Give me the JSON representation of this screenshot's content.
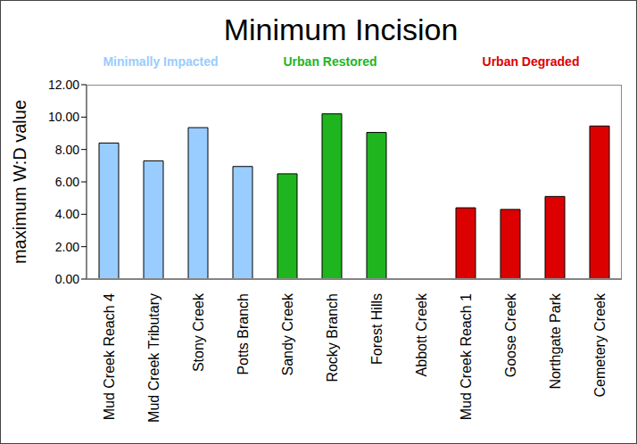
{
  "chart_data": {
    "type": "bar",
    "title": "Minimum Incision",
    "y_label": "maximum W:D value",
    "annotations": [
      {
        "text": "Minimally Impacted",
        "color": "#99ccff"
      },
      {
        "text": "Urban Restored",
        "color": "#1fb51f"
      },
      {
        "text": "Urban Degraded",
        "color": "#dd0000"
      }
    ],
    "categories": [
      "Mud Creek Reach 4",
      "Mud Creek Tributary",
      "Stony Creek",
      "Potts Branch",
      "Sandy Creek",
      "Rocky Branch",
      "Forest Hills",
      "Abbott Creek",
      "Mud Creek Reach 1",
      "Goose Creek",
      "Northgate Park",
      "Cemetery Creek"
    ],
    "values": [
      8.4,
      7.3,
      9.35,
      6.95,
      6.5,
      10.2,
      9.05,
      null,
      4.4,
      4.3,
      5.1,
      9.45
    ],
    "colors": [
      "#99ccff",
      "#99ccff",
      "#99ccff",
      "#99ccff",
      "#1fb51f",
      "#1fb51f",
      "#1fb51f",
      "#1fb51f",
      "#dd0000",
      "#dd0000",
      "#dd0000",
      "#dd0000"
    ],
    "ylim": [
      0,
      12
    ],
    "yticks": [
      {
        "value": 0,
        "label": "0.00"
      },
      {
        "value": 2,
        "label": "2.00"
      },
      {
        "value": 4,
        "label": "4.00"
      },
      {
        "value": 6,
        "label": "6.00"
      },
      {
        "value": 8,
        "label": "8.00"
      },
      {
        "value": 10,
        "label": "10.00"
      },
      {
        "value": 12,
        "label": "12.00"
      }
    ],
    "grid": false
  }
}
